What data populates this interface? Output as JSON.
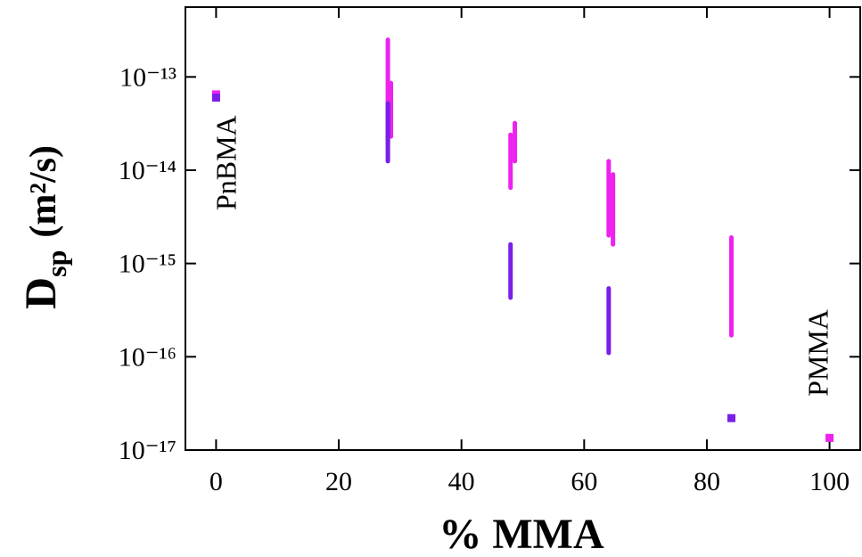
{
  "chart_data": {
    "type": "range",
    "ylabel": {
      "symbol": "D",
      "subscript": "sp",
      "unit": "(m²/s)"
    },
    "xlabel": "% MMA",
    "xlim": [
      -5,
      105
    ],
    "xticks": [
      0,
      20,
      40,
      60,
      80,
      100
    ],
    "ylim": [
      1e-17,
      5.6e-13
    ],
    "ylog": true,
    "yticks": [
      {
        "value": 1e-17,
        "label": "10⁻¹⁷"
      },
      {
        "value": 1e-16,
        "label": "10⁻¹⁶"
      },
      {
        "value": 1e-15,
        "label": "10⁻¹⁵"
      },
      {
        "value": 1e-14,
        "label": "10⁻¹⁴"
      },
      {
        "value": 1e-13,
        "label": "10⁻¹³"
      }
    ],
    "series": [
      {
        "color": "#ee22ee",
        "x": [
          0,
          28,
          28.5,
          48,
          48.7,
          64,
          64.7,
          84,
          100
        ],
        "high": [
          6.5e-14,
          2.5e-13,
          8.6e-14,
          2.4e-14,
          3.2e-14,
          1.25e-14,
          9e-15,
          1.9e-15,
          1.35e-17
        ],
        "low": [
          6.5e-14,
          1.9e-14,
          2.3e-14,
          6.5e-15,
          1.25e-14,
          2e-15,
          1.6e-15,
          1.7e-16,
          1.35e-17
        ]
      },
      {
        "color": "#7a1ee8",
        "x": [
          0,
          28,
          48,
          64,
          84
        ],
        "high": [
          6e-14,
          5.2e-14,
          1.6e-15,
          5.4e-16,
          2.2e-17
        ],
        "low": [
          6e-14,
          1.25e-14,
          4.3e-16,
          1.1e-16,
          2.2e-17
        ]
      }
    ],
    "annotations": [
      {
        "text": "PnBMA",
        "x": 0,
        "y": 1.2e-14
      },
      {
        "text": "PMMA",
        "x": 100,
        "y": 1.1e-16
      }
    ]
  }
}
